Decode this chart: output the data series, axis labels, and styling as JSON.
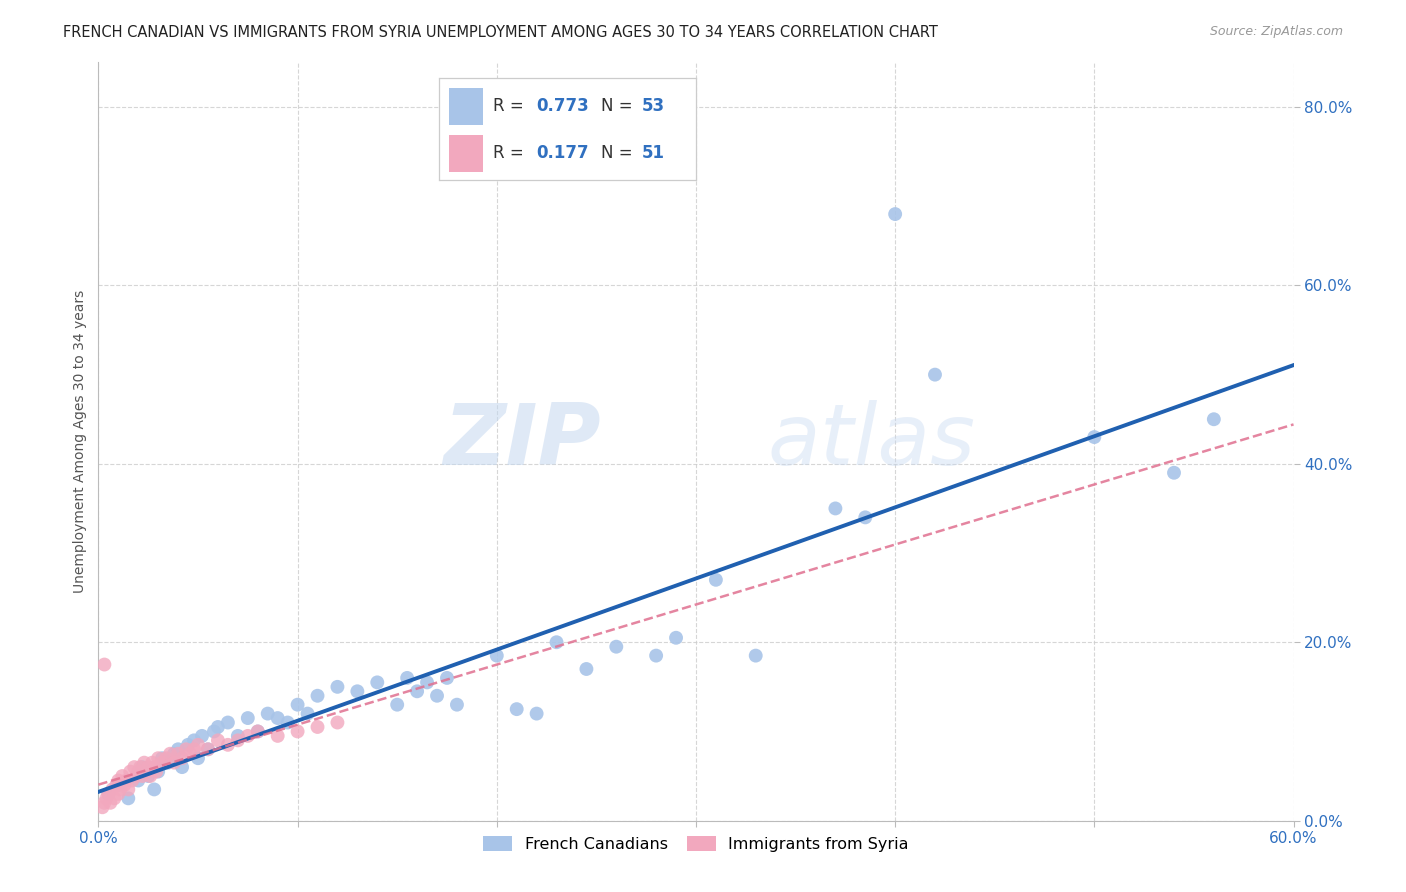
{
  "title": "FRENCH CANADIAN VS IMMIGRANTS FROM SYRIA UNEMPLOYMENT AMONG AGES 30 TO 34 YEARS CORRELATION CHART",
  "source": "Source: ZipAtlas.com",
  "ylabel_label": "Unemployment Among Ages 30 to 34 years",
  "watermark_zip": "ZIP",
  "watermark_atlas": "atlas",
  "xlim": [
    0.0,
    0.6
  ],
  "ylim": [
    0.0,
    0.85
  ],
  "xticks_minor": [
    0.0,
    0.1,
    0.2,
    0.3,
    0.4,
    0.5,
    0.6
  ],
  "yticks": [
    0.0,
    0.2,
    0.4,
    0.6,
    0.8
  ],
  "ytick_labels": [
    "0.0%",
    "20.0%",
    "40.0%",
    "60.0%",
    "80.0%"
  ],
  "blue_color": "#a8c4e8",
  "pink_color": "#f2a8be",
  "blue_line_color": "#2060b0",
  "pink_line_color": "#e07090",
  "legend_r_blue": "0.773",
  "legend_n_blue": "53",
  "legend_r_pink": "0.177",
  "legend_n_pink": "51",
  "blue_scatter_x": [
    0.005,
    0.01,
    0.015,
    0.02,
    0.022,
    0.025,
    0.028,
    0.03,
    0.032,
    0.035,
    0.038,
    0.04,
    0.042,
    0.045,
    0.048,
    0.05,
    0.052,
    0.055,
    0.058,
    0.06,
    0.065,
    0.07,
    0.075,
    0.08,
    0.085,
    0.09,
    0.095,
    0.1,
    0.105,
    0.11,
    0.12,
    0.13,
    0.14,
    0.15,
    0.155,
    0.16,
    0.165,
    0.17,
    0.175,
    0.18,
    0.2,
    0.21,
    0.22,
    0.23,
    0.245,
    0.26,
    0.28,
    0.29,
    0.31,
    0.33,
    0.5,
    0.54,
    0.56
  ],
  "blue_scatter_y": [
    0.03,
    0.04,
    0.025,
    0.045,
    0.06,
    0.05,
    0.035,
    0.055,
    0.07,
    0.065,
    0.075,
    0.08,
    0.06,
    0.085,
    0.09,
    0.07,
    0.095,
    0.08,
    0.1,
    0.105,
    0.11,
    0.095,
    0.115,
    0.1,
    0.12,
    0.115,
    0.11,
    0.13,
    0.12,
    0.14,
    0.15,
    0.145,
    0.155,
    0.13,
    0.16,
    0.145,
    0.155,
    0.14,
    0.16,
    0.13,
    0.185,
    0.125,
    0.12,
    0.2,
    0.17,
    0.195,
    0.185,
    0.205,
    0.27,
    0.185,
    0.43,
    0.39,
    0.45
  ],
  "blue_outlier1_x": [
    0.37
  ],
  "blue_outlier1_y": [
    0.35
  ],
  "blue_outlier2_x": [
    0.385
  ],
  "blue_outlier2_y": [
    0.34
  ],
  "blue_high1_x": [
    0.4
  ],
  "blue_high1_y": [
    0.68
  ],
  "blue_high2_x": [
    0.42
  ],
  "blue_high2_y": [
    0.5
  ],
  "pink_scatter_x": [
    0.002,
    0.003,
    0.004,
    0.005,
    0.006,
    0.007,
    0.008,
    0.009,
    0.01,
    0.01,
    0.011,
    0.012,
    0.013,
    0.014,
    0.015,
    0.016,
    0.017,
    0.018,
    0.019,
    0.02,
    0.021,
    0.022,
    0.023,
    0.024,
    0.025,
    0.026,
    0.027,
    0.028,
    0.029,
    0.03,
    0.032,
    0.034,
    0.036,
    0.038,
    0.04,
    0.042,
    0.044,
    0.046,
    0.048,
    0.05,
    0.055,
    0.06,
    0.065,
    0.07,
    0.075,
    0.08,
    0.09,
    0.1,
    0.11,
    0.12
  ],
  "pink_scatter_y": [
    0.015,
    0.02,
    0.025,
    0.03,
    0.02,
    0.035,
    0.025,
    0.04,
    0.03,
    0.045,
    0.035,
    0.05,
    0.04,
    0.045,
    0.035,
    0.055,
    0.045,
    0.06,
    0.05,
    0.055,
    0.06,
    0.05,
    0.065,
    0.055,
    0.06,
    0.05,
    0.065,
    0.06,
    0.055,
    0.07,
    0.065,
    0.07,
    0.075,
    0.065,
    0.075,
    0.07,
    0.08,
    0.075,
    0.08,
    0.085,
    0.08,
    0.09,
    0.085,
    0.09,
    0.095,
    0.1,
    0.095,
    0.1,
    0.105,
    0.11
  ],
  "pink_outlier_x": [
    0.003
  ],
  "pink_outlier_y": [
    0.175
  ],
  "background_color": "#ffffff",
  "grid_color": "#cccccc",
  "title_fontsize": 10.5,
  "axis_label_fontsize": 10,
  "tick_fontsize": 11,
  "tick_color": "#3070c0"
}
